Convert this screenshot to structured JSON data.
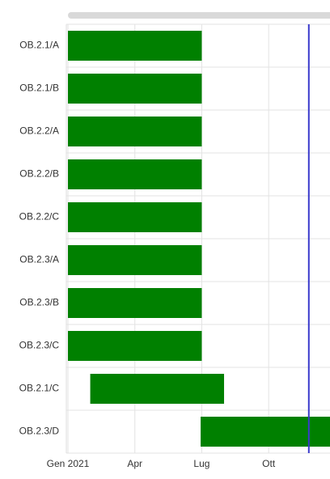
{
  "chart_data": {
    "type": "gantt",
    "tasks": [
      {
        "name": "OB.2.1/A",
        "start": 0,
        "end": 6
      },
      {
        "name": "OB.2.1/B",
        "start": 0,
        "end": 6
      },
      {
        "name": "OB.2.2/A",
        "start": 0,
        "end": 6
      },
      {
        "name": "OB.2.2/B",
        "start": 0,
        "end": 6
      },
      {
        "name": "OB.2.2/C",
        "start": 0,
        "end": 6
      },
      {
        "name": "OB.2.3/A",
        "start": 0,
        "end": 6
      },
      {
        "name": "OB.2.3/B",
        "start": 0,
        "end": 6
      },
      {
        "name": "OB.2.3/C",
        "start": 0,
        "end": 6
      },
      {
        "name": "OB.2.1/C",
        "start": 1,
        "end": 7
      },
      {
        "name": "OB.2.3/D",
        "start": 5.95,
        "end": 11.75
      }
    ],
    "color": "#008000",
    "today": 10.8,
    "today_color": "#3a3acc",
    "xlim": [
      0,
      11.75
    ],
    "xticks": [
      {
        "value": 0,
        "label": "Gen 2021"
      },
      {
        "value": 3,
        "label": "Apr"
      },
      {
        "value": 6,
        "label": "Lug"
      },
      {
        "value": 9,
        "label": "Ott"
      }
    ],
    "grid": true
  }
}
